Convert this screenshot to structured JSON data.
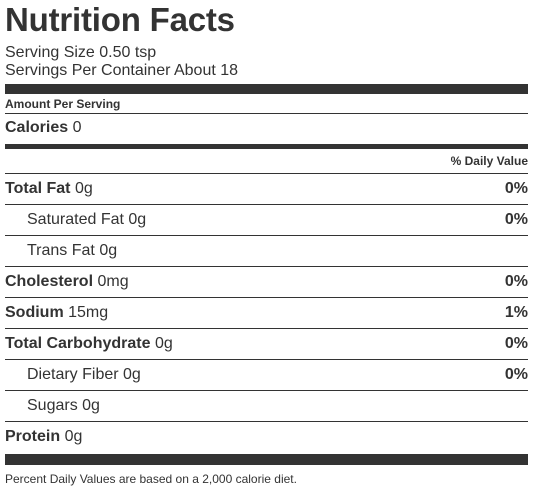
{
  "title": "Nutrition Facts",
  "serving_size": "Serving Size 0.50 tsp",
  "servings_per_container": "Servings Per Container About 18",
  "amount_per_serving": "Amount Per Serving",
  "calories": {
    "label": "Calories",
    "value": "0"
  },
  "daily_value_header": "% Daily Value",
  "nutrients": {
    "total_fat": {
      "label": "Total Fat",
      "amount": "0g",
      "dv": "0%"
    },
    "saturated_fat": {
      "label": "Saturated Fat",
      "amount": "0g",
      "dv": "0%"
    },
    "trans_fat": {
      "label": "Trans Fat",
      "amount": "0g",
      "dv": ""
    },
    "cholesterol": {
      "label": "Cholesterol",
      "amount": "0mg",
      "dv": "0%"
    },
    "sodium": {
      "label": "Sodium",
      "amount": "15mg",
      "dv": "1%"
    },
    "total_carbohydrate": {
      "label": "Total Carbohydrate",
      "amount": "0g",
      "dv": "0%"
    },
    "dietary_fiber": {
      "label": "Dietary Fiber",
      "amount": "0g",
      "dv": "0%"
    },
    "sugars": {
      "label": "Sugars",
      "amount": "0g",
      "dv": ""
    },
    "protein": {
      "label": "Protein",
      "amount": "0g",
      "dv": ""
    }
  },
  "footnote": "Percent Daily Values are based on a 2,000 calorie diet.",
  "colors": {
    "text": "#333333",
    "bars": "#333333",
    "background": "#ffffff"
  }
}
